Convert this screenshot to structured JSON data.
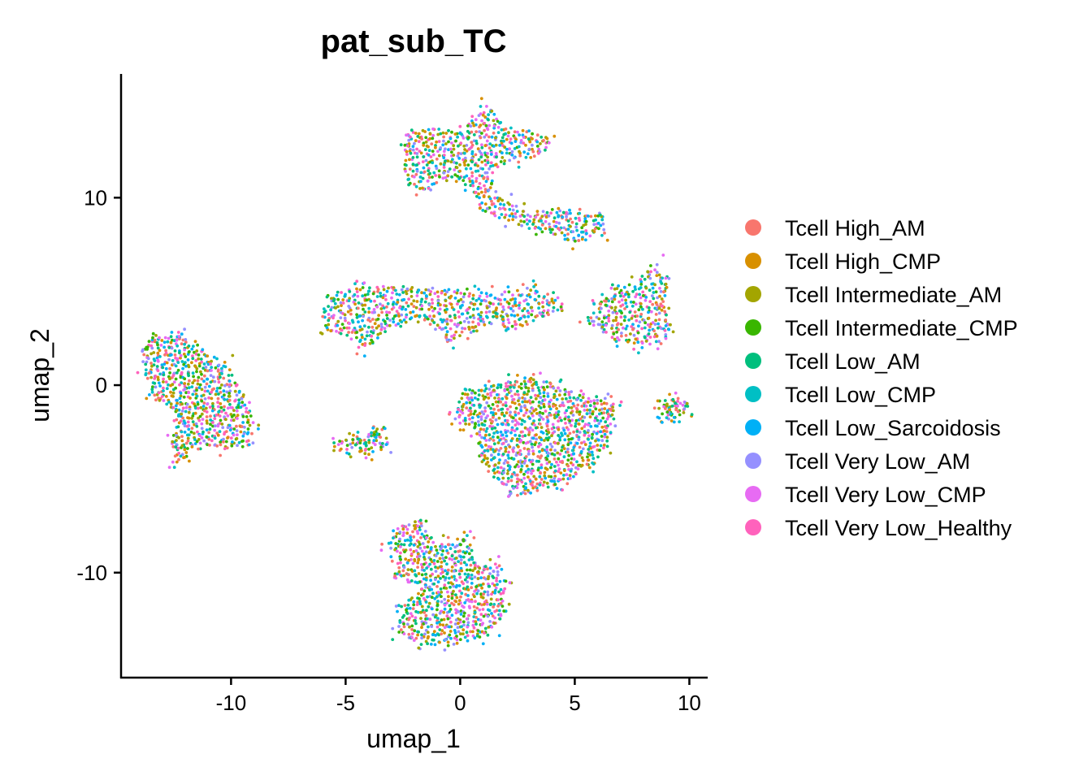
{
  "chart_data": {
    "type": "scatter",
    "title": "pat_sub_TC",
    "xlabel": "umap_1",
    "ylabel": "umap_2",
    "xlim": [
      -14.8,
      10.8
    ],
    "ylim": [
      -15.6,
      16.6
    ],
    "x_ticks": [
      -10,
      -5,
      0,
      5,
      10
    ],
    "x_tick_labels": [
      "-10",
      "-5",
      "0",
      "5",
      "10"
    ],
    "y_ticks": [
      10,
      0,
      -10
    ],
    "y_tick_labels": [
      "10",
      "0",
      "-10"
    ],
    "grid": false,
    "legend_position": "right",
    "series": [
      {
        "name": "Tcell High_AM",
        "color": "#F8766D"
      },
      {
        "name": "Tcell High_CMP",
        "color": "#D89000"
      },
      {
        "name": "Tcell Intermediate_AM",
        "color": "#A3A500"
      },
      {
        "name": "Tcell Intermediate_CMP",
        "color": "#39B600"
      },
      {
        "name": "Tcell Low_AM",
        "color": "#00BF7D"
      },
      {
        "name": "Tcell Low_CMP",
        "color": "#00BFC4"
      },
      {
        "name": "Tcell Low_Sarcoidosis",
        "color": "#00B0F6"
      },
      {
        "name": "Tcell Very Low_AM",
        "color": "#9590FF"
      },
      {
        "name": "Tcell Very Low_CMP",
        "color": "#E76BF3"
      },
      {
        "name": "Tcell Very Low_Healthy",
        "color": "#FF62BC"
      }
    ],
    "clusters": [
      {
        "label": "left",
        "shape": "polygon",
        "vertices": [
          [
            -13.9,
            2.1
          ],
          [
            -13.2,
            2.6
          ],
          [
            -12.3,
            2.7
          ],
          [
            -11.3,
            2.0
          ],
          [
            -10.2,
            1.2
          ],
          [
            -9.4,
            -0.6
          ],
          [
            -9.0,
            -2.0
          ],
          [
            -9.2,
            -3.3
          ],
          [
            -10.2,
            -3.4
          ],
          [
            -11.3,
            -3.1
          ],
          [
            -12.0,
            -3.8
          ],
          [
            -12.4,
            -4.2
          ],
          [
            -12.6,
            -3.0
          ],
          [
            -12.2,
            -1.6
          ],
          [
            -13.4,
            -0.6
          ],
          [
            -13.8,
            0.7
          ]
        ],
        "density": 1.0
      },
      {
        "label": "top",
        "shape": "polygon",
        "vertices": [
          [
            -2.5,
            12.8
          ],
          [
            -2.3,
            13.5
          ],
          [
            -1.0,
            13.7
          ],
          [
            0.0,
            13.5
          ],
          [
            0.8,
            14.5
          ],
          [
            1.2,
            15.0
          ],
          [
            1.8,
            14.0
          ],
          [
            3.0,
            13.5
          ],
          [
            3.9,
            13.3
          ],
          [
            3.8,
            12.3
          ],
          [
            2.5,
            12.0
          ],
          [
            1.5,
            11.5
          ],
          [
            1.3,
            10.3
          ],
          [
            2.0,
            9.8
          ],
          [
            3.0,
            9.3
          ],
          [
            4.5,
            9.4
          ],
          [
            5.5,
            9.2
          ],
          [
            6.3,
            9.0
          ],
          [
            6.4,
            8.0
          ],
          [
            5.0,
            7.6
          ],
          [
            3.5,
            8.1
          ],
          [
            2.0,
            8.8
          ],
          [
            0.8,
            9.3
          ],
          [
            0.4,
            10.6
          ],
          [
            -0.6,
            11.0
          ],
          [
            -1.6,
            10.3
          ],
          [
            -2.3,
            10.7
          ],
          [
            -2.5,
            11.8
          ]
        ],
        "density": 0.9
      },
      {
        "label": "mid-left",
        "shape": "polygon",
        "vertices": [
          [
            -6.0,
            3.8
          ],
          [
            -5.8,
            4.8
          ],
          [
            -4.5,
            5.3
          ],
          [
            -2.5,
            5.3
          ],
          [
            -1.0,
            5.2
          ],
          [
            0.5,
            5.0
          ],
          [
            1.5,
            4.9
          ],
          [
            2.2,
            5.0
          ],
          [
            3.0,
            5.2
          ],
          [
            4.0,
            4.6
          ],
          [
            4.5,
            4.0
          ],
          [
            3.5,
            3.5
          ],
          [
            2.0,
            2.8
          ],
          [
            1.8,
            3.5
          ],
          [
            0.6,
            2.8
          ],
          [
            -0.5,
            2.3
          ],
          [
            -1.4,
            3.3
          ],
          [
            -2.5,
            3.3
          ],
          [
            -3.8,
            2.5
          ],
          [
            -4.2,
            1.8
          ],
          [
            -4.5,
            2.5
          ],
          [
            -5.8,
            2.8
          ]
        ],
        "density": 0.85
      },
      {
        "label": "right",
        "shape": "polygon",
        "vertices": [
          [
            5.5,
            3.4
          ],
          [
            6.1,
            4.5
          ],
          [
            6.9,
            5.0
          ],
          [
            7.8,
            5.7
          ],
          [
            8.6,
            6.6
          ],
          [
            9.0,
            5.4
          ],
          [
            8.9,
            4.1
          ],
          [
            9.2,
            3.0
          ],
          [
            8.9,
            2.2
          ],
          [
            7.8,
            2.1
          ],
          [
            6.9,
            2.4
          ],
          [
            6.1,
            3.0
          ]
        ],
        "density": 0.85
      },
      {
        "label": "center",
        "shape": "polygon",
        "vertices": [
          [
            -0.2,
            -1.3
          ],
          [
            0.2,
            -0.2
          ],
          [
            1.2,
            -0.1
          ],
          [
            2.2,
            0.2
          ],
          [
            3.3,
            0.6
          ],
          [
            4.2,
            -0.1
          ],
          [
            5.5,
            -0.5
          ],
          [
            6.4,
            -0.7
          ],
          [
            6.8,
            -1.2
          ],
          [
            6.6,
            -2.5
          ],
          [
            6.3,
            -3.3
          ],
          [
            5.8,
            -4.3
          ],
          [
            4.5,
            -5.2
          ],
          [
            3.2,
            -5.8
          ],
          [
            2.3,
            -5.9
          ],
          [
            1.4,
            -5.0
          ],
          [
            0.8,
            -3.8
          ],
          [
            0.8,
            -2.5
          ],
          [
            0.1,
            -2.1
          ],
          [
            -0.2,
            -1.7
          ]
        ],
        "density": 1.0
      },
      {
        "label": "bottom",
        "shape": "polygon",
        "vertices": [
          [
            -2.9,
            -10.3
          ],
          [
            -2.7,
            -9.1
          ],
          [
            -3.2,
            -8.5
          ],
          [
            -2.6,
            -7.5
          ],
          [
            -1.8,
            -7.2
          ],
          [
            -1.0,
            -8.5
          ],
          [
            -0.5,
            -8.4
          ],
          [
            0.3,
            -8.0
          ],
          [
            0.8,
            -9.6
          ],
          [
            1.6,
            -9.5
          ],
          [
            2.0,
            -10.8
          ],
          [
            2.0,
            -12.0
          ],
          [
            1.5,
            -13.0
          ],
          [
            0.8,
            -13.5
          ],
          [
            -0.5,
            -13.9
          ],
          [
            -2.0,
            -13.8
          ],
          [
            -2.7,
            -13.2
          ],
          [
            -2.6,
            -11.8
          ],
          [
            -1.6,
            -10.8
          ]
        ],
        "density": 1.0
      },
      {
        "label": "small-left",
        "shape": "polygon",
        "vertices": [
          [
            -5.3,
            -3.0
          ],
          [
            -4.6,
            -2.8
          ],
          [
            -3.9,
            -2.7
          ],
          [
            -3.5,
            -2.6
          ],
          [
            -3.3,
            -3.3
          ],
          [
            -3.9,
            -3.6
          ],
          [
            -4.6,
            -3.5
          ],
          [
            -5.2,
            -3.3
          ]
        ],
        "density": 0.8
      },
      {
        "label": "small-right",
        "shape": "polygon",
        "vertices": [
          [
            8.8,
            -1.2
          ],
          [
            9.2,
            -0.8
          ],
          [
            9.7,
            -1.0
          ],
          [
            9.8,
            -1.5
          ],
          [
            9.3,
            -1.7
          ],
          [
            8.9,
            -1.6
          ]
        ],
        "density": 0.6
      }
    ]
  }
}
